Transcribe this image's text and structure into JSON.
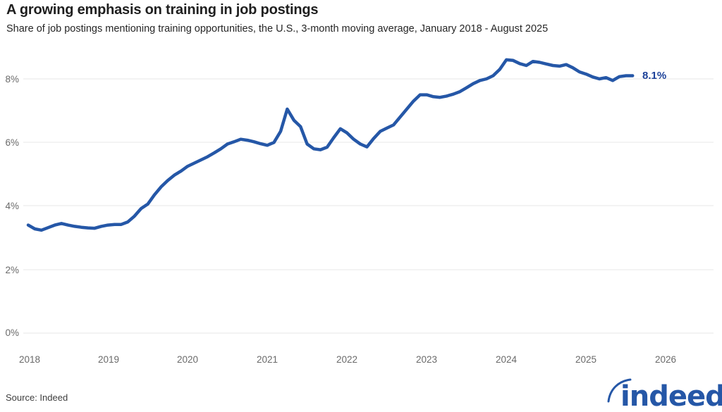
{
  "header": {
    "title": "A growing emphasis on training in job postings",
    "subtitle": "Share of job postings mentioning training opportunities, the U.S., 3-month moving average, January 2018 - August 2025"
  },
  "footer": {
    "source": "Source: Indeed",
    "logo_text": "indeed",
    "logo_color": "#2557a7"
  },
  "chart_data": {
    "type": "line",
    "title": "A growing emphasis on training in job postings",
    "x_start": "2018-01",
    "x_end": "2025-08",
    "frequency": "monthly",
    "series": [
      {
        "name": "Share of job postings mentioning training opportunities (3-month moving average)",
        "color": "#2557a7",
        "values": [
          3.4,
          3.28,
          3.24,
          3.32,
          3.4,
          3.45,
          3.4,
          3.36,
          3.33,
          3.31,
          3.3,
          3.36,
          3.4,
          3.42,
          3.42,
          3.5,
          3.68,
          3.92,
          4.06,
          4.35,
          4.6,
          4.8,
          4.97,
          5.1,
          5.25,
          5.35,
          5.45,
          5.55,
          5.67,
          5.8,
          5.95,
          6.02,
          6.1,
          6.07,
          6.02,
          5.96,
          5.91,
          6.0,
          6.35,
          7.05,
          6.7,
          6.5,
          5.95,
          5.8,
          5.77,
          5.85,
          6.15,
          6.43,
          6.3,
          6.1,
          5.95,
          5.86,
          6.12,
          6.35,
          6.45,
          6.55,
          6.8,
          7.05,
          7.3,
          7.5,
          7.5,
          7.44,
          7.42,
          7.46,
          7.52,
          7.6,
          7.72,
          7.85,
          7.95,
          8.0,
          8.1,
          8.3,
          8.6,
          8.58,
          8.48,
          8.42,
          8.55,
          8.52,
          8.47,
          8.42,
          8.4,
          8.45,
          8.35,
          8.22,
          8.15,
          8.06,
          8.0,
          8.04,
          7.95,
          8.07,
          8.1,
          8.1
        ]
      }
    ],
    "end_label": "8.1%",
    "end_label_color": "#1c4199",
    "yticks": [
      0,
      2,
      4,
      6,
      8
    ],
    "ytick_labels": [
      "0%",
      "2%",
      "4%",
      "6%",
      "8%"
    ],
    "xtick_labels": [
      "2018",
      "2019",
      "2020",
      "2021",
      "2022",
      "2023",
      "2024",
      "2025",
      "2026"
    ],
    "ylabel": "",
    "xlabel": "",
    "ylim": [
      0,
      9.3
    ],
    "grid": "horizontal",
    "legend": "none"
  }
}
